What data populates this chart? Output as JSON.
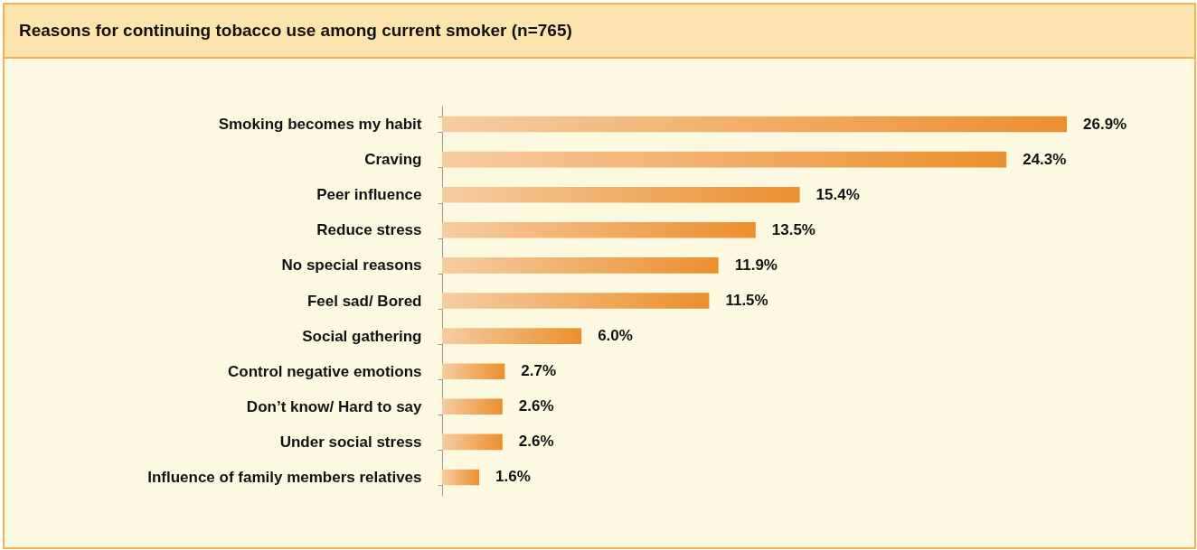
{
  "chart_data": {
    "type": "bar",
    "orientation": "horizontal",
    "title": "Reasons for continuing tobacco use among current smoker (n=765)",
    "categories": [
      "Smoking becomes my habit",
      "Craving",
      "Peer influence",
      "Reduce stress",
      "No special reasons",
      "Feel sad/ Bored",
      "Social gathering",
      "Control negative emotions",
      "Don’t know/ Hard to say",
      "Under social stress",
      "Influence of family members relatives"
    ],
    "values": [
      26.9,
      24.3,
      15.4,
      13.5,
      11.9,
      11.5,
      6.0,
      2.7,
      2.6,
      2.6,
      1.6
    ],
    "value_labels": [
      "26.9%",
      "24.3%",
      "15.4%",
      "13.5%",
      "11.9%",
      "11.5%",
      "6.0%",
      "2.7%",
      "2.6%",
      "2.6%",
      "1.6%"
    ],
    "color": "#eb8f2e"
  }
}
